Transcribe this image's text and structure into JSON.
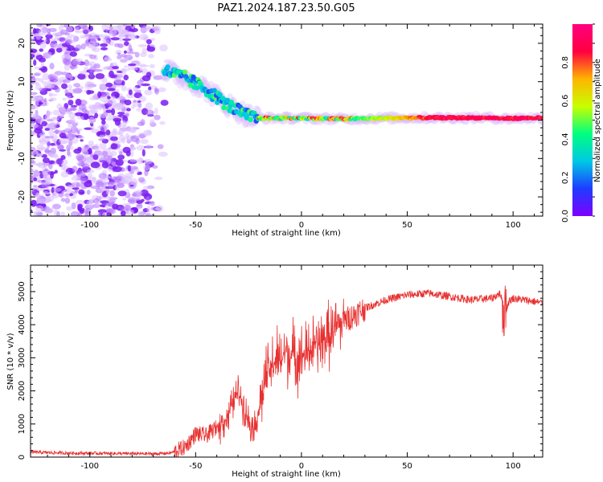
{
  "figure": {
    "title": "PAZ1.2024.187.23.50.G05"
  },
  "chart_data": [
    {
      "type": "heatmap",
      "xlabel": "Height of straight line (km)",
      "ylabel": "Frequency (Hz)",
      "xlim": [
        -128,
        114
      ],
      "ylim": [
        -25,
        25
      ],
      "xticks": [
        -100,
        -50,
        0,
        50,
        100
      ],
      "yticks": [
        -20,
        -10,
        0,
        10,
        20
      ],
      "grid": false,
      "colorbar": {
        "label": "Normalized spectral amplitude",
        "range": [
          0,
          1
        ],
        "ticks": [
          0.0,
          0.2,
          0.4,
          0.6,
          0.8
        ],
        "colormap": [
          "#7f00ff",
          "#1e3cff",
          "#00c8e6",
          "#00ff80",
          "#c8ff00",
          "#ffb400",
          "#ff0040",
          "#ff0080"
        ]
      },
      "signal_track": {
        "x": [
          -65,
          -55,
          -45,
          -35,
          -25,
          -20,
          -10,
          0,
          20,
          50,
          90,
          95,
          114
        ],
        "freq": [
          13,
          11,
          8,
          4,
          1,
          0.5,
          0.5,
          0.5,
          0.3,
          0.6,
          0.6,
          0.4,
          0.6
        ]
      },
      "noise_region": {
        "x": [
          -128,
          -62
        ],
        "freq": [
          -25,
          25
        ]
      }
    },
    {
      "type": "line",
      "xlabel": "Height of straight line (km)",
      "ylabel": "SNR (10 * v/v)",
      "xlim": [
        -128,
        114
      ],
      "ylim": [
        0,
        5800
      ],
      "xticks": [
        -100,
        -50,
        0,
        50,
        100
      ],
      "yticks": [
        0,
        1000,
        2000,
        3000,
        4000,
        5000
      ],
      "grid": false,
      "series": [
        {
          "color": "#e83030",
          "x": [
            -128,
            -110,
            -90,
            -70,
            -62,
            -55,
            -50,
            -45,
            -40,
            -35,
            -32,
            -30,
            -28,
            -25,
            -22,
            -20,
            -18,
            -15,
            -12,
            -10,
            -8,
            -5,
            0,
            5,
            10,
            15,
            20,
            25,
            30,
            40,
            50,
            60,
            70,
            80,
            90,
            94,
            96,
            98,
            100,
            110,
            114
          ],
          "y": [
            150,
            120,
            110,
            100,
            120,
            300,
            700,
            650,
            900,
            1200,
            1700,
            2000,
            1700,
            1100,
            900,
            1500,
            2100,
            2600,
            3000,
            2800,
            3200,
            3100,
            3000,
            3300,
            3500,
            3800,
            4100,
            4300,
            4500,
            4750,
            4900,
            4950,
            4850,
            4750,
            4800,
            4950,
            4300,
            4700,
            4800,
            4700,
            4650
          ]
        }
      ]
    }
  ]
}
